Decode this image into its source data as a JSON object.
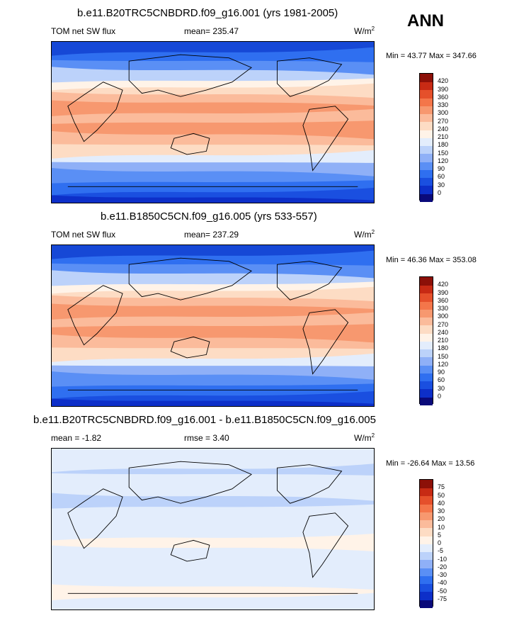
{
  "season_label": "ANN",
  "chart_data": [
    {
      "type": "heatmap",
      "title": "b.e11.B20TRC5CNBDRD.f09_g16.001 (yrs 1981-2005)",
      "variable": "TOM net SW flux",
      "stat_text": "mean= 235.47",
      "units_base": "W/m",
      "units_exp": "2",
      "min_max_text": "Min =  43.77 Max = 347.66",
      "min": 43.77,
      "max": 347.66,
      "mean": 235.47,
      "levels": [
        0,
        30,
        60,
        90,
        120,
        150,
        180,
        210,
        240,
        270,
        300,
        330,
        360,
        390,
        420
      ],
      "colorbar_colors": [
        "#0a0a7a",
        "#0d2fc9",
        "#1a4fe0",
        "#2f6ff0",
        "#5a8ff5",
        "#8fb0f7",
        "#bcd2fa",
        "#e3edfc",
        "#fff3e8",
        "#fddcc4",
        "#fbbb9b",
        "#f7986f",
        "#f4764a",
        "#e5502b",
        "#c72a14",
        "#8c1008"
      ]
    },
    {
      "type": "heatmap",
      "title": "b.e11.B1850C5CN.f09_g16.005 (yrs 533-557)",
      "variable": "TOM net SW flux",
      "stat_text": "mean= 237.29",
      "units_base": "W/m",
      "units_exp": "2",
      "min_max_text": "Min =  46.36 Max = 353.08",
      "min": 46.36,
      "max": 353.08,
      "mean": 237.29,
      "levels": [
        0,
        30,
        60,
        90,
        120,
        150,
        180,
        210,
        240,
        270,
        300,
        330,
        360,
        390,
        420
      ],
      "colorbar_colors": [
        "#0a0a7a",
        "#0d2fc9",
        "#1a4fe0",
        "#2f6ff0",
        "#5a8ff5",
        "#8fb0f7",
        "#bcd2fa",
        "#e3edfc",
        "#fff3e8",
        "#fddcc4",
        "#fbbb9b",
        "#f7986f",
        "#f4764a",
        "#e5502b",
        "#c72a14",
        "#8c1008"
      ]
    },
    {
      "type": "heatmap",
      "title": "b.e11.B20TRC5CNBDRD.f09_g16.001 - b.e11.B1850C5CN.f09_g16.005",
      "variable": "mean =  -1.82",
      "stat_text": "rmse =   3.40",
      "units_base": "W/m",
      "units_exp": "2",
      "min_max_text": "Min = -26.64 Max =  13.56",
      "min": -26.64,
      "max": 13.56,
      "mean": -1.82,
      "rmse": 3.4,
      "levels": [
        -75,
        -50,
        -40,
        -30,
        -20,
        -10,
        -5,
        0,
        5,
        10,
        20,
        30,
        40,
        50,
        75
      ],
      "colorbar_colors": [
        "#0a0a7a",
        "#0d2fc9",
        "#1a4fe0",
        "#2f6ff0",
        "#5a8ff5",
        "#8fb0f7",
        "#bcd2fa",
        "#e3edfc",
        "#fff3e8",
        "#fddcc4",
        "#fbbb9b",
        "#f7986f",
        "#f4764a",
        "#e5502b",
        "#c72a14",
        "#8c1008"
      ]
    }
  ]
}
